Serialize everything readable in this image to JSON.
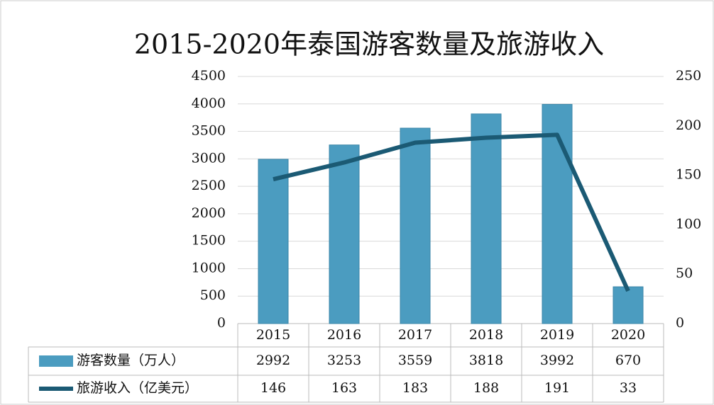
{
  "chart_data": {
    "type": "bar-line-table",
    "title": "2015-2020年泰国游客数量及旅游收入",
    "categories": [
      "2015",
      "2016",
      "2017",
      "2018",
      "2019",
      "2020"
    ],
    "series": [
      {
        "name": "游客数量（万人）",
        "color": "#4b9cc0",
        "type": "bar",
        "values": [
          2992,
          3253,
          3559,
          3818,
          3992,
          670
        ]
      },
      {
        "name": "旅游收入（亿美元）",
        "color": "#1b5a74",
        "type": "line",
        "axis": "y2",
        "values": [
          146,
          163,
          183,
          188,
          191,
          33
        ]
      }
    ],
    "ylim": [
      0,
      4500
    ],
    "yticks": [
      0,
      500,
      1000,
      1500,
      2000,
      2500,
      3000,
      3500,
      4000,
      4500
    ],
    "y2lim": [
      0,
      250
    ],
    "y2ticks": [
      0,
      50,
      100,
      150,
      200,
      250
    ],
    "grid": true
  }
}
